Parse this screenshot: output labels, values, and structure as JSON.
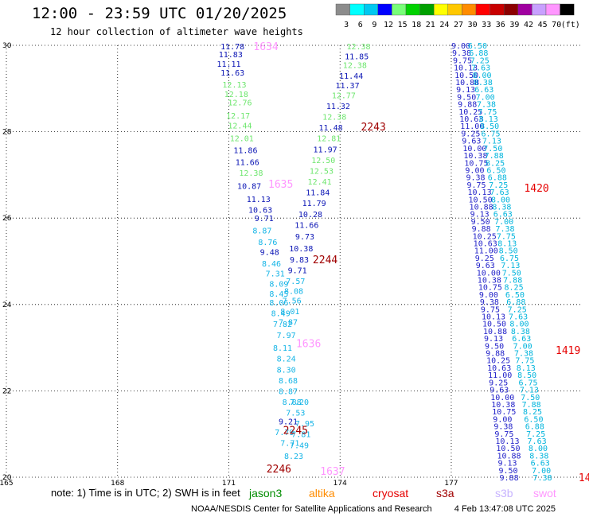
{
  "header": {
    "title": "12:00 - 23:59 UTC 01/20/2025",
    "subtitle": "12 hour collection of altimeter wave heights"
  },
  "colorbar": {
    "labels": [
      "3",
      "6",
      "9",
      "12",
      "15",
      "18",
      "21",
      "24",
      "27",
      "30",
      "33",
      "36",
      "39",
      "42",
      "45",
      "70",
      "(ft)"
    ],
    "colors": [
      "#8c8c8c",
      "#00ffff",
      "#00c8f0",
      "#0000ff",
      "#78ff78",
      "#00d200",
      "#00a000",
      "#ffff00",
      "#ffc800",
      "#ff8c00",
      "#ff0000",
      "#c80000",
      "#8c0000",
      "#a000a0",
      "#c8a0ff",
      "#ff96ff",
      "#000000"
    ]
  },
  "note": {
    "text": "note:  1) Time is in UTC; 2) SWH is in feet"
  },
  "satellites": [
    {
      "name": "jason3",
      "color": "#008c00"
    },
    {
      "name": "altika",
      "color": "#ff8c00"
    },
    {
      "name": "cryosat",
      "color": "#e60000"
    },
    {
      "name": "s3a",
      "color": "#a00000"
    },
    {
      "name": "s3b",
      "color": "#c8b4ff"
    },
    {
      "name": "swot",
      "color": "#ff96ff"
    }
  ],
  "footer": {
    "credit": "NOAA/NESDIS Center for Satellite Applications and Research",
    "timestamp": "4 Feb 13:47:08 UTC 2025"
  },
  "chart_data": {
    "type": "scatter",
    "xlim": [
      165,
      180.5
    ],
    "ylim": [
      20,
      30
    ],
    "x_ticks": [
      165,
      168,
      171,
      174,
      177
    ],
    "y_ticks": [
      20,
      22,
      24,
      26,
      28,
      30
    ],
    "grid": true,
    "series": [
      {
        "x": [
          171.1,
          171.05,
          171.0,
          171.1,
          171.15,
          171.2,
          171.3,
          171.25,
          171.3,
          171.35,
          171.45,
          171.5,
          171.6,
          171.55,
          171.8,
          171.85,
          171.95,
          171.9,
          172.05,
          172.1,
          172.15,
          172.25,
          172.35,
          172.35,
          172.35,
          172.4,
          172.45,
          172.55,
          172.45,
          172.55,
          172.55,
          172.6,
          172.6,
          172.7,
          172.6,
          172.5,
          172.65,
          172.75
        ],
        "y": [
          29.98,
          29.8,
          29.58,
          29.37,
          29.1,
          28.88,
          28.68,
          28.38,
          28.15,
          27.85,
          27.58,
          27.3,
          27.05,
          26.75,
          26.45,
          26.2,
          26.0,
          25.72,
          25.45,
          25.22,
          24.95,
          24.72,
          24.48,
          24.25,
          24.05,
          23.8,
          23.55,
          23.3,
          23.0,
          22.75,
          22.5,
          22.25,
          22.0,
          21.75,
          21.3,
          21.05,
          20.8,
          20.5
        ],
        "values": [
          11.78,
          11.83,
          11.11,
          11.63,
          12.13,
          12.18,
          12.76,
          12.17,
          12.44,
          12.01,
          11.86,
          11.66,
          12.38,
          10.87,
          11.13,
          10.63,
          9.71,
          8.87,
          8.76,
          9.48,
          8.46,
          7.31,
          8.09,
          8.45,
          8.06,
          8.49,
          7.82,
          7.97,
          8.11,
          8.24,
          8.3,
          8.68,
          8.87,
          8.88,
          9.21,
          7.79,
          7.71,
          8.23
        ]
      },
      {
        "x": [
          174.5,
          174.45,
          174.4,
          174.3,
          174.2,
          174.1,
          173.95,
          173.85,
          173.75,
          173.7,
          173.6,
          173.55,
          173.5,
          173.45,
          173.4,
          173.3,
          173.2,
          173.1,
          173.05,
          172.95,
          172.9,
          172.85,
          172.8,
          172.75,
          172.7,
          172.65,
          172.6,
          172.9,
          172.8,
          173.05,
          172.95,
          172.9
        ],
        "y": [
          29.98,
          29.75,
          29.55,
          29.3,
          29.08,
          28.85,
          28.6,
          28.35,
          28.1,
          27.85,
          27.6,
          27.35,
          27.1,
          26.85,
          26.6,
          26.35,
          26.1,
          25.85,
          25.58,
          25.3,
          25.05,
          24.8,
          24.55,
          24.32,
          24.1,
          23.85,
          23.6,
          21.75,
          21.5,
          21.25,
          21.0,
          20.75
        ],
        "values": [
          12.38,
          11.85,
          12.38,
          11.44,
          11.37,
          12.77,
          11.32,
          12.38,
          11.48,
          12.81,
          11.97,
          12.5,
          12.53,
          12.41,
          11.84,
          11.79,
          10.28,
          11.66,
          9.73,
          10.38,
          9.83,
          9.71,
          7.57,
          8.08,
          7.56,
          8.01,
          7.87,
          7.2,
          7.53,
          7.95,
          7.81,
          7.49
        ]
      }
    ],
    "track_labels": [
      {
        "label": "1634",
        "x": 172.0,
        "y": 29.98,
        "color": "#ff96ff"
      },
      {
        "label": "2243",
        "x": 174.9,
        "y": 28.12,
        "color": "#a00000"
      },
      {
        "label": "1635",
        "x": 172.4,
        "y": 26.8,
        "color": "#ff96ff"
      },
      {
        "label": "1420",
        "x": 179.3,
        "y": 26.7,
        "color": "#e60000"
      },
      {
        "label": "2244",
        "x": 173.6,
        "y": 25.05,
        "color": "#a00000"
      },
      {
        "label": "1636",
        "x": 173.15,
        "y": 23.1,
        "color": "#ff96ff"
      },
      {
        "label": "1419",
        "x": 180.15,
        "y": 22.95,
        "color": "#e60000"
      },
      {
        "label": "2245",
        "x": 172.8,
        "y": 21.1,
        "color": "#a00000"
      },
      {
        "label": "2246",
        "x": 172.35,
        "y": 20.2,
        "color": "#a00000"
      },
      {
        "label": "1637",
        "x": 173.8,
        "y": 20.15,
        "color": "#ff96ff"
      },
      {
        "label": "14",
        "x": 180.6,
        "y": 20.0,
        "color": "#e60000"
      }
    ],
    "dense_tracks": [
      {
        "x_top": 177.0,
        "x_bot": 178.3,
        "color": "#1e1ec8",
        "value_range": [
          9.0,
          11.0
        ]
      },
      {
        "x_top": 177.45,
        "x_bot": 179.2,
        "color": "#00b4dc",
        "value_range": [
          6.5,
          8.5
        ]
      }
    ]
  }
}
